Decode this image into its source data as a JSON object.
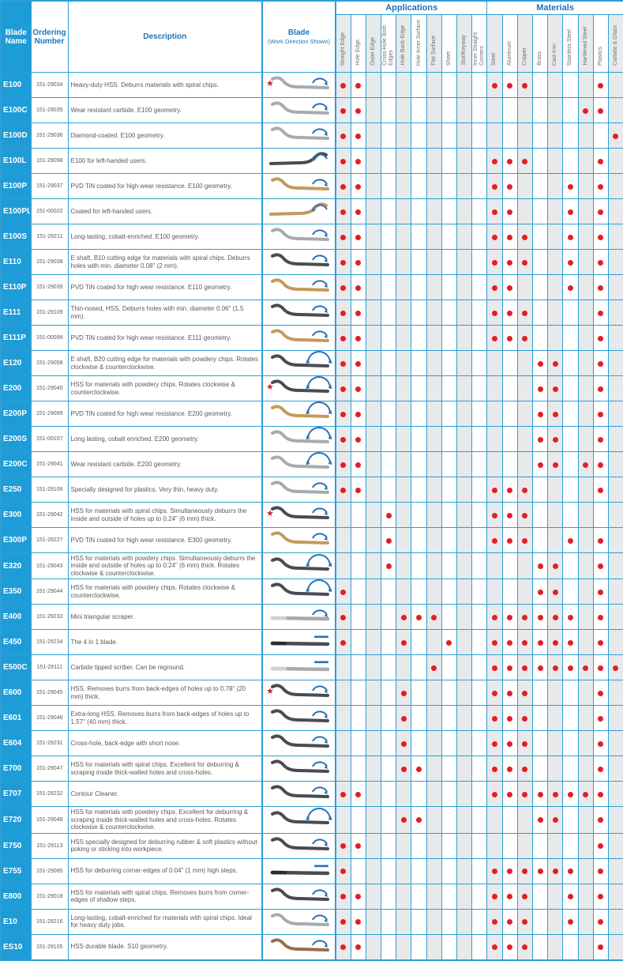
{
  "header": {
    "blade_name": "Blade Name",
    "ordering_number": "Ordering Number",
    "description": "Description",
    "blade": "Blade",
    "blade_sub": "(Work Direction Shown)",
    "applications_label": "Applications",
    "materials_label": "Materials",
    "application_columns": [
      "Straight Edge",
      "Hole Edge",
      "Outer Edge",
      "Cross-Hole Both Edges",
      "Hole Back-Edge",
      "Hole Inner Surface",
      "Flat Surface",
      "Sheet",
      "Slot/Keyway",
      "Inner Straight Corners"
    ],
    "material_columns": [
      "Steel",
      "Aluminum",
      "Copper",
      "Brass",
      "Cast Iron",
      "Stainless Steel",
      "Hardened Steel",
      "Plastics",
      "Carbide & Glass"
    ]
  },
  "colors": {
    "header_blue": "#1E9CD7",
    "border_blue": "#2E9FD6",
    "group_label_blue": "#1B75BB",
    "dot_red": "#E21E26",
    "star_red": "#D21E26",
    "arrow_blue": "#2A71B8",
    "shade_gray": "#E8E9EA",
    "text_gray": "#58595B",
    "blade_palette": {
      "silver": "#A8AAAD",
      "gold": "#C49A5B",
      "dark": "#4A4B4E",
      "bronze": "#9A6C4F"
    }
  },
  "rows": [
    {
      "name": "E100",
      "order": "151-29034",
      "desc": "Heavy-duty HSS. Deburrs materials with spiral chips.",
      "star": true,
      "blade_color": "silver",
      "shape": "curve",
      "mirror": false,
      "arrow": "arc",
      "dots": [
        1,
        2,
        11,
        12,
        13,
        18
      ]
    },
    {
      "name": "E100C",
      "order": "151-29035",
      "desc": "Wear resistant carbide. E100 geometry.",
      "star": false,
      "blade_color": "silver",
      "shape": "curve",
      "mirror": false,
      "arrow": "arc",
      "dots": [
        1,
        2,
        17,
        18
      ]
    },
    {
      "name": "E100D",
      "order": "151-29036",
      "desc": "Diamond-coated. E100 geometry.",
      "star": false,
      "blade_color": "silver",
      "shape": "curve",
      "mirror": false,
      "arrow": "arc",
      "dots": [
        1,
        2,
        19
      ]
    },
    {
      "name": "E100L",
      "order": "151-29098",
      "desc": "E100 for left-handed users.",
      "star": false,
      "blade_color": "dark",
      "shape": "curve",
      "mirror": true,
      "arrow": "arcl",
      "dots": [
        1,
        2,
        11,
        12,
        13,
        18
      ]
    },
    {
      "name": "E100P",
      "order": "151-29037",
      "desc": "PVD TiN coated for high wear resistance. E100 geometry.",
      "star": false,
      "blade_color": "gold",
      "shape": "curve",
      "mirror": false,
      "arrow": "arc",
      "dots": [
        1,
        2,
        11,
        12,
        16,
        18
      ]
    },
    {
      "name": "E100PL",
      "order": "151-00022",
      "desc": "Coated for left-handed users.",
      "star": false,
      "blade_color": "gold",
      "shape": "curve",
      "mirror": true,
      "arrow": "arcl",
      "dots": [
        1,
        2,
        11,
        12,
        16,
        18
      ]
    },
    {
      "name": "E100S",
      "order": "151-29211",
      "desc": "Long-lasting, cobalt-enriched. E100 geometry.",
      "star": false,
      "blade_color": "silver",
      "shape": "curve",
      "mirror": false,
      "arrow": "arc",
      "dots": [
        1,
        2,
        11,
        12,
        13,
        16,
        18
      ]
    },
    {
      "name": "E110",
      "order": "151-29038",
      "desc": "E shaft, B10 cutting edge for materials with spiral chips. Deburrs holes with min. diameter 0.08\" (2 mm).",
      "star": false,
      "blade_color": "dark",
      "shape": "curve",
      "mirror": false,
      "arrow": "arc",
      "dots": [
        1,
        2,
        11,
        12,
        13,
        16,
        18
      ]
    },
    {
      "name": "E110P",
      "order": "151-29039",
      "desc": "PVD TiN coated for high wear resistance. E110 geometry.",
      "star": false,
      "blade_color": "gold",
      "shape": "curve",
      "mirror": false,
      "arrow": "arc",
      "dots": [
        1,
        2,
        11,
        12,
        16,
        18
      ]
    },
    {
      "name": "E111",
      "order": "151-29109",
      "desc": "Thin-nosed, HSS. Deburrs holes with min. diameter 0.06\" (1.5 mm).",
      "star": false,
      "blade_color": "dark",
      "shape": "curve",
      "mirror": false,
      "arrow": "arc",
      "dots": [
        1,
        2,
        11,
        12,
        13,
        18
      ]
    },
    {
      "name": "E111P",
      "order": "151-00099",
      "desc": "PVD TiN coated for high wear resistance. E111 geometry.",
      "star": false,
      "blade_color": "gold",
      "shape": "curve",
      "mirror": false,
      "arrow": "arc",
      "dots": [
        1,
        2,
        11,
        12,
        13,
        18
      ]
    },
    {
      "name": "E120",
      "order": "151-29058",
      "desc": "E shaft, B20 cutting edge for materials with powdery chips. Rotates clockwise & counterclockwise.",
      "star": false,
      "blade_color": "dark",
      "shape": "curve",
      "mirror": false,
      "arrow": "arc2",
      "dots": [
        1,
        2,
        14,
        15,
        18
      ]
    },
    {
      "name": "E200",
      "order": "151-29040",
      "desc": "HSS for materials with powdery chips. Rotates clockwise & counterclockwise.",
      "star": true,
      "blade_color": "dark",
      "shape": "curve",
      "mirror": false,
      "arrow": "arc2",
      "dots": [
        1,
        2,
        14,
        15,
        18
      ]
    },
    {
      "name": "E200P",
      "order": "151-29099",
      "desc": "PVD TiN coated for high wear resistance. E200 geometry.",
      "star": false,
      "blade_color": "gold",
      "shape": "curve",
      "mirror": false,
      "arrow": "arc2",
      "dots": [
        1,
        2,
        14,
        15,
        18
      ]
    },
    {
      "name": "E200S",
      "order": "151-00107",
      "desc": "Long lasting, cobalt enriched. E200 geometry.",
      "star": false,
      "blade_color": "silver",
      "shape": "curve",
      "mirror": false,
      "arrow": "arc2",
      "dots": [
        1,
        2,
        14,
        15,
        18
      ]
    },
    {
      "name": "E200C",
      "order": "151-29041",
      "desc": "Wear resistant carbide. E200 geometry.",
      "star": false,
      "blade_color": "silver",
      "shape": "curve",
      "mirror": false,
      "arrow": "arc2",
      "dots": [
        1,
        2,
        14,
        15,
        17,
        18
      ]
    },
    {
      "name": "E250",
      "order": "151-29106",
      "desc": "Specially designed for plastics. Very thin, heavy duty.",
      "star": false,
      "blade_color": "silver",
      "shape": "curve",
      "mirror": false,
      "arrow": "arc",
      "dots": [
        1,
        2,
        11,
        12,
        13,
        18
      ]
    },
    {
      "name": "E300",
      "order": "151-29042",
      "desc": "HSS for materials with spiral chips. Simultaneously deburrs the inside and outside of holes up to 0.24\" (6 mm) thick.",
      "star": true,
      "blade_color": "dark",
      "shape": "curve",
      "mirror": false,
      "arrow": "arc",
      "dots": [
        4,
        11,
        12,
        13
      ]
    },
    {
      "name": "E300P",
      "order": "151-29227",
      "desc": "PVD TiN coated for high wear resistance. E300 geometry.",
      "star": false,
      "blade_color": "gold",
      "shape": "curve",
      "mirror": false,
      "arrow": "arc",
      "dots": [
        4,
        11,
        12,
        13,
        16,
        18
      ]
    },
    {
      "name": "E320",
      "order": "151-29043",
      "desc": "HSS for materials with powdery chips. Simultaneously deburrs the inside and outside of holes up to 0.24\" (6 mm) thick. Rotates clockwise & counterclockwise.",
      "star": false,
      "blade_color": "dark",
      "shape": "curve",
      "mirror": false,
      "arrow": "arc2",
      "dots": [
        4,
        14,
        15,
        18
      ]
    },
    {
      "name": "E350",
      "order": "151-29044",
      "desc": "HSS for materials with powdery chips. Rotates clockwise & counterclockwise.",
      "star": false,
      "blade_color": "dark",
      "shape": "curve",
      "mirror": false,
      "arrow": "arc2",
      "dots": [
        1,
        14,
        15,
        18
      ]
    },
    {
      "name": "E400",
      "order": "151-29233",
      "desc": "Mini triangular scraper.",
      "star": false,
      "blade_color": "silver",
      "shape": "straight",
      "mirror": false,
      "arrow": "arc",
      "dots": [
        1,
        5,
        6,
        7,
        11,
        12,
        13,
        14,
        15,
        16,
        18
      ]
    },
    {
      "name": "E450",
      "order": "151-29234",
      "desc": "The 4 in 1 blade.",
      "star": false,
      "blade_color": "dark",
      "shape": "straight",
      "mirror": false,
      "arrow": "line",
      "dots": [
        1,
        5,
        8,
        11,
        12,
        13,
        14,
        15,
        16,
        18
      ]
    },
    {
      "name": "E500C",
      "order": "151-29111",
      "desc": "Carbide tipped scriber. Can be reground.",
      "star": false,
      "blade_color": "silver",
      "shape": "straight",
      "mirror": false,
      "arrow": "line",
      "dots": [
        7,
        11,
        12,
        13,
        14,
        15,
        16,
        17,
        18,
        19
      ]
    },
    {
      "name": "E600",
      "order": "151-29045",
      "desc": "HSS. Removes burrs from back-edges of holes up to 0.78\" (20 mm) thick.",
      "star": true,
      "blade_color": "dark",
      "shape": "curve",
      "mirror": false,
      "arrow": "arc",
      "dots": [
        5,
        11,
        12,
        13,
        18
      ]
    },
    {
      "name": "E601",
      "order": "151-29046",
      "desc": "Extra-long HSS. Removes burrs from back-edges of holes up to 1.57\" (40 mm) thick.",
      "star": false,
      "blade_color": "dark",
      "shape": "curve",
      "mirror": false,
      "arrow": "arc",
      "dots": [
        5,
        11,
        12,
        13,
        18
      ]
    },
    {
      "name": "E604",
      "order": "151-29231",
      "desc": "Cross-hole, back-edge with short nose.",
      "star": false,
      "blade_color": "dark",
      "shape": "curve",
      "mirror": false,
      "arrow": "arc",
      "dots": [
        5,
        11,
        12,
        13,
        18
      ]
    },
    {
      "name": "E700",
      "order": "151-29047",
      "desc": "HSS for materials with spiral chips. Excellent for deburring & scraping inside thick-walled holes and cross-holes.",
      "star": false,
      "blade_color": "dark",
      "shape": "curve",
      "mirror": false,
      "arrow": "arc",
      "dots": [
        5,
        6,
        11,
        12,
        13,
        18
      ]
    },
    {
      "name": "E707",
      "order": "151-29232",
      "desc": "Contour Cleaner.",
      "star": false,
      "blade_color": "dark",
      "shape": "curve",
      "mirror": false,
      "arrow": "arc",
      "dots": [
        1,
        2,
        11,
        12,
        13,
        14,
        15,
        16,
        17,
        18
      ]
    },
    {
      "name": "E720",
      "order": "151-29048",
      "desc": "HSS for materials with powdery chips. Excellent for deburring & scraping inside thick-walled holes and cross-holes. Rotates clockwise & counterclockwise.",
      "star": false,
      "blade_color": "dark",
      "shape": "curve",
      "mirror": false,
      "arrow": "arc2",
      "dots": [
        5,
        6,
        14,
        15,
        18
      ]
    },
    {
      "name": "E750",
      "order": "151-29113",
      "desc": "HSS specially designed for deburring rubber & soft plastics without poking or sticking into workpiece.",
      "star": false,
      "blade_color": "dark",
      "shape": "curve",
      "mirror": false,
      "arrow": "arc",
      "dots": [
        1,
        2,
        18
      ]
    },
    {
      "name": "E755",
      "order": "151-29085",
      "desc": "HSS for deburring corner-edges of 0.04\" (1 mm) high steps.",
      "star": false,
      "blade_color": "dark",
      "shape": "straight",
      "mirror": false,
      "arrow": "line",
      "dots": [
        1,
        11,
        12,
        13,
        14,
        15,
        16,
        18
      ]
    },
    {
      "name": "E800",
      "order": "151-29018",
      "desc": "HSS for materials with spiral chips. Removes burrs from corner-edges of shallow steps.",
      "star": false,
      "blade_color": "dark",
      "shape": "curve",
      "mirror": false,
      "arrow": "arc",
      "dots": [
        1,
        2,
        11,
        12,
        13,
        16,
        18
      ]
    },
    {
      "name": "E10",
      "order": "151-29216",
      "desc": "Long-lasting, cobalt-enriched for materials with spiral chips. Ideal for heavy duty jobs.",
      "star": false,
      "blade_color": "silver",
      "shape": "curve",
      "mirror": false,
      "arrow": "arc",
      "dots": [
        1,
        2,
        11,
        12,
        13,
        16,
        18
      ]
    },
    {
      "name": "ES10",
      "order": "151-29105",
      "desc": "HSS durable blade. S10 geometry.",
      "star": false,
      "blade_color": "bronze",
      "shape": "curve",
      "mirror": false,
      "arrow": "arc",
      "dots": [
        1,
        2,
        11,
        12,
        13,
        18
      ]
    }
  ]
}
